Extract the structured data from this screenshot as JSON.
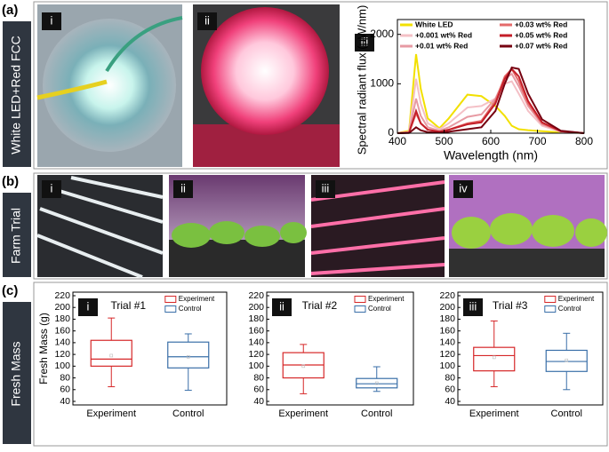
{
  "panels": [
    {
      "letter": "(a)",
      "side": "White LED+Red FCC",
      "photos": [
        "i",
        "ii"
      ]
    },
    {
      "letter": "(b)",
      "side": "Farm Trial",
      "photos": [
        "i",
        "ii",
        "iii",
        "iv"
      ]
    },
    {
      "letter": "(c)",
      "side": "Fresh Mass"
    }
  ],
  "chart_data": [
    {
      "type": "line",
      "tag": "iii",
      "xlabel": "Wavelength (nm)",
      "ylabel": "Spectral radiant flux (μW/nm)",
      "xlim": [
        400,
        800
      ],
      "xticks": [
        400,
        500,
        600,
        700,
        800
      ],
      "ylim": [
        0,
        2300
      ],
      "yticks": [
        0,
        1000,
        2000
      ],
      "x": [
        400,
        425,
        440,
        450,
        465,
        490,
        510,
        550,
        580,
        610,
        630,
        645,
        660,
        680,
        710,
        750,
        800
      ],
      "series": [
        {
          "name": "White LED",
          "color": "#f2e000",
          "values": [
            0,
            50,
            1600,
            900,
            300,
            100,
            300,
            780,
            750,
            550,
            350,
            150,
            80,
            60,
            40,
            15,
            5
          ]
        },
        {
          "name": "+0.001 wt% Red",
          "color": "#f4c0c6",
          "values": [
            0,
            30,
            1100,
            600,
            200,
            80,
            200,
            520,
            550,
            700,
            1000,
            1050,
            800,
            450,
            150,
            30,
            0
          ]
        },
        {
          "name": "+0.01 wt% Red",
          "color": "#e79aa3",
          "values": [
            0,
            20,
            700,
            350,
            120,
            50,
            120,
            330,
            380,
            700,
            1100,
            1200,
            950,
            550,
            180,
            40,
            0
          ]
        },
        {
          "name": "+0.03 wt% Red",
          "color": "#e46a6a",
          "values": [
            0,
            15,
            400,
            200,
            70,
            30,
            70,
            200,
            250,
            650,
            1150,
            1300,
            1050,
            600,
            200,
            40,
            0
          ]
        },
        {
          "name": "+0.05 wt% Red",
          "color": "#c41e28",
          "values": [
            0,
            10,
            450,
            200,
            70,
            30,
            70,
            180,
            220,
            600,
            1100,
            1300,
            1150,
            650,
            220,
            40,
            0
          ]
        },
        {
          "name": "+0.07 wt% Red",
          "color": "#760010",
          "values": [
            0,
            5,
            120,
            60,
            20,
            10,
            30,
            80,
            120,
            450,
            1000,
            1330,
            1300,
            800,
            280,
            50,
            0
          ]
        }
      ]
    },
    {
      "type": "box",
      "tag": "i",
      "title": "Trial #1",
      "ylabel": "Fresh Mass (g)",
      "categories": [
        "Experiment",
        "Control"
      ],
      "ylim": [
        40,
        220
      ],
      "yticks": [
        40,
        60,
        80,
        100,
        120,
        140,
        160,
        180,
        200,
        220
      ],
      "series": [
        {
          "name": "Experiment",
          "color": "#d62728",
          "stats": [
            65,
            100,
            112,
            144,
            182
          ],
          "mean": 118
        },
        {
          "name": "Control",
          "color": "#3a6fa8",
          "stats": [
            59,
            97,
            116,
            141,
            155
          ],
          "mean": 116
        }
      ]
    },
    {
      "type": "box",
      "tag": "ii",
      "title": "Trial #2",
      "categories": [
        "Experiment",
        "Control"
      ],
      "ylim": [
        40,
        220
      ],
      "yticks": [
        40,
        60,
        80,
        100,
        120,
        140,
        160,
        180,
        200,
        220
      ],
      "series": [
        {
          "name": "Experiment",
          "color": "#d62728",
          "stats": [
            53,
            80,
            102,
            123,
            137
          ],
          "mean": 100
        },
        {
          "name": "Control",
          "color": "#3a6fa8",
          "stats": [
            57,
            63,
            70,
            79,
            99
          ],
          "mean": 71
        }
      ]
    },
    {
      "type": "box",
      "tag": "iii",
      "title": "Trial #3",
      "categories": [
        "Experiment",
        "Control"
      ],
      "ylim": [
        40,
        220
      ],
      "yticks": [
        40,
        60,
        80,
        100,
        120,
        140,
        160,
        180,
        200,
        220
      ],
      "series": [
        {
          "name": "Experiment",
          "color": "#d62728",
          "stats": [
            65,
            92,
            118,
            132,
            177
          ],
          "mean": 115
        },
        {
          "name": "Control",
          "color": "#3a6fa8",
          "stats": [
            60,
            91,
            108,
            127,
            156
          ],
          "mean": 110
        }
      ]
    }
  ]
}
